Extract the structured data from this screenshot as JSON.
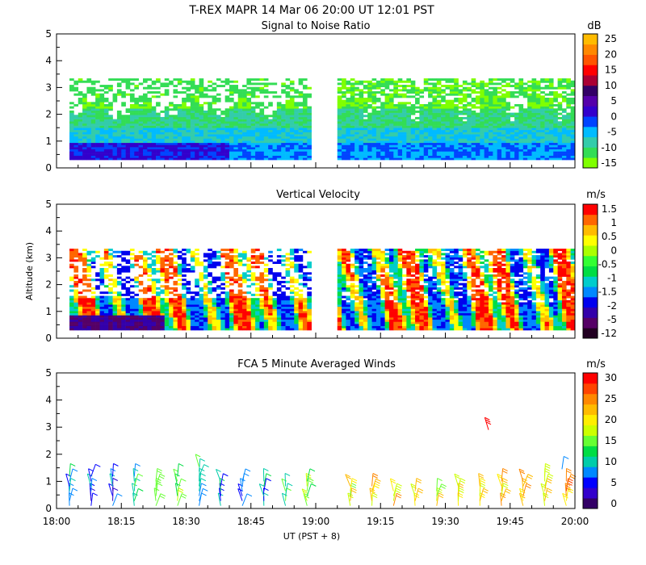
{
  "chart_data": [
    {
      "type": "heatmap",
      "title": "T-REX   MAPR 14 Mar 06   20:00 UT   12:01   PST",
      "subtitle": "Signal to Noise Ratio",
      "units": "dB",
      "xlabel": "",
      "ylabel": "",
      "xlim": [
        0,
        120
      ],
      "ylim": [
        0,
        5
      ],
      "yticks": [
        0,
        1,
        2,
        3,
        4,
        5
      ],
      "colorbar": {
        "ticks": [
          "-15",
          "-10",
          "-5",
          "0",
          "5",
          "10",
          "15",
          "20",
          "25"
        ],
        "colors": [
          "#7fff00",
          "#33dd55",
          "#33ccaa",
          "#00bbff",
          "#0044ff",
          "#3300cc",
          "#5500aa",
          "#330066",
          "#aa0033",
          "#ff0000",
          "#ff5500",
          "#ff8800",
          "#ffbb00"
        ]
      },
      "data_gap_minutes": [
        59,
        65
      ],
      "data_top_km": 3.3,
      "data_bottom_km": 0.3
    },
    {
      "type": "heatmap",
      "subtitle": "Vertical Velocity",
      "units": "m/s",
      "xlabel": "",
      "ylabel": "Altitude (km)",
      "xlim": [
        0,
        120
      ],
      "ylim": [
        0,
        5
      ],
      "yticks": [
        0,
        1,
        2,
        3,
        4,
        5
      ],
      "colorbar": {
        "ticks": [
          "-12",
          "-5",
          "-2",
          "-1.5",
          "-1",
          "-0.5",
          "0",
          "0.5",
          "1",
          "1.5"
        ],
        "colors": [
          "#220022",
          "#550066",
          "#3300aa",
          "#0000ee",
          "#0088ff",
          "#00cccc",
          "#00dd44",
          "#33ff33",
          "#aaff00",
          "#ffff00",
          "#ffbb00",
          "#ff6600",
          "#ff0000"
        ]
      },
      "data_gap_minutes": [
        59,
        65
      ],
      "data_top_km": 3.3,
      "data_bottom_km": 0.3
    },
    {
      "type": "scatter",
      "subtitle": "FCA 5 Minute Averaged Winds",
      "units": "m/s",
      "xlabel": "UT  (PST + 8)",
      "ylabel": "",
      "xlim": [
        0,
        120
      ],
      "ylim": [
        0,
        5
      ],
      "yticks": [
        0,
        1,
        2,
        3,
        4,
        5
      ],
      "xticks": [
        "18:00",
        "18:15",
        "18:30",
        "18:45",
        "19:00",
        "19:15",
        "19:30",
        "19:45",
        "20:00"
      ],
      "colorbar": {
        "ticks": [
          "0",
          "5",
          "10",
          "15",
          "20",
          "25",
          "30"
        ],
        "colors": [
          "#330066",
          "#3300cc",
          "#0000ff",
          "#0088ff",
          "#00ccaa",
          "#00dd44",
          "#66ff33",
          "#ccff00",
          "#ffee00",
          "#ffbb00",
          "#ff8800",
          "#ff4400",
          "#ff0000"
        ]
      },
      "profile_times_min": [
        3,
        8,
        13,
        18,
        23,
        28,
        33,
        38,
        43,
        48,
        53,
        58,
        68,
        73,
        78,
        83,
        88,
        93,
        98,
        103,
        108,
        113,
        118
      ],
      "profile_top_km": [
        1.2,
        1.2,
        1.2,
        1.2,
        1.1,
        1.2,
        1.6,
        1.0,
        1.0,
        1.0,
        0.9,
        1.0,
        0.9,
        0.9,
        0.8,
        0.8,
        0.8,
        0.9,
        0.9,
        1.0,
        1.1,
        1.3,
        1.1
      ],
      "profile_speed_ms": [
        9,
        7,
        6,
        12,
        14,
        16,
        11,
        8,
        5,
        9,
        13,
        15,
        19,
        21,
        22,
        20,
        18,
        19,
        20,
        21,
        22,
        20,
        23
      ],
      "isolated_barbs": [
        {
          "time_min": 100,
          "alt_km": 2.9,
          "speed_ms": 29
        },
        {
          "time_min": 117,
          "alt_km": 1.45,
          "speed_ms": 8
        }
      ]
    }
  ]
}
